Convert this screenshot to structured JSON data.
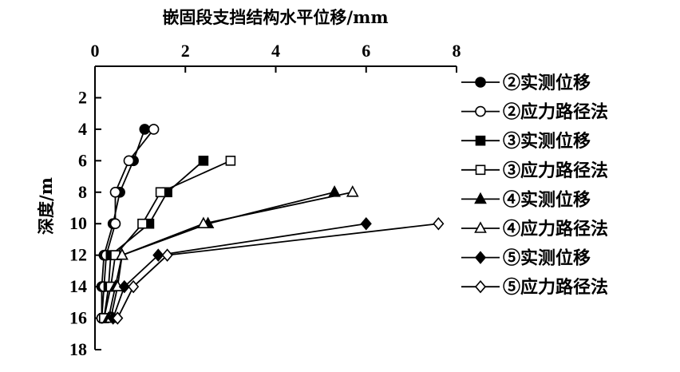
{
  "chart_data": {
    "type": "line",
    "title": "",
    "xlabel": "嵌固段支挡结构水平位移/mm",
    "ylabel": "深度/m",
    "xlim": [
      0,
      8
    ],
    "ylim": [
      0,
      18
    ],
    "x_axis_position": "top",
    "y_axis_inverted": true,
    "x_ticks": [
      0,
      2,
      4,
      6,
      8
    ],
    "y_ticks": [
      2,
      4,
      6,
      8,
      10,
      12,
      14,
      16,
      18
    ],
    "grid": false,
    "legend_position": "right",
    "series": [
      {
        "name": "②实测位移",
        "marker": "filled-circle",
        "points": [
          [
            1.1,
            4
          ],
          [
            0.85,
            6
          ],
          [
            0.55,
            8
          ],
          [
            0.4,
            10
          ],
          [
            0.2,
            12
          ],
          [
            0.15,
            14
          ],
          [
            0.15,
            16
          ]
        ]
      },
      {
        "name": "②应力路径法",
        "marker": "open-circle",
        "points": [
          [
            1.3,
            4
          ],
          [
            0.75,
            6
          ],
          [
            0.45,
            8
          ],
          [
            0.45,
            10
          ],
          [
            0.25,
            12
          ],
          [
            0.2,
            14
          ],
          [
            0.15,
            16
          ]
        ]
      },
      {
        "name": "③实测位移",
        "marker": "filled-square",
        "points": [
          [
            2.4,
            6
          ],
          [
            1.6,
            8
          ],
          [
            1.2,
            10
          ],
          [
            0.35,
            12
          ],
          [
            0.3,
            14
          ],
          [
            0.2,
            16
          ]
        ]
      },
      {
        "name": "③应力路径法",
        "marker": "open-square",
        "points": [
          [
            3.0,
            6
          ],
          [
            1.45,
            8
          ],
          [
            1.05,
            10
          ],
          [
            0.45,
            12
          ],
          [
            0.35,
            14
          ],
          [
            0.2,
            16
          ]
        ]
      },
      {
        "name": "④实测位移",
        "marker": "filled-triangle",
        "points": [
          [
            5.3,
            8
          ],
          [
            2.5,
            10
          ],
          [
            0.6,
            12
          ],
          [
            0.45,
            14
          ],
          [
            0.3,
            16
          ]
        ]
      },
      {
        "name": "④应力路径法",
        "marker": "open-triangle",
        "points": [
          [
            5.7,
            8
          ],
          [
            2.4,
            10
          ],
          [
            0.6,
            12
          ],
          [
            0.5,
            14
          ],
          [
            0.35,
            16
          ]
        ]
      },
      {
        "name": "⑤实测位移",
        "marker": "filled-diamond",
        "points": [
          [
            6.0,
            10
          ],
          [
            1.4,
            12
          ],
          [
            0.65,
            14
          ],
          [
            0.4,
            16
          ]
        ]
      },
      {
        "name": "⑤应力路径法",
        "marker": "open-diamond",
        "points": [
          [
            7.6,
            10
          ],
          [
            1.6,
            12
          ],
          [
            0.85,
            14
          ],
          [
            0.5,
            16
          ]
        ]
      }
    ]
  }
}
